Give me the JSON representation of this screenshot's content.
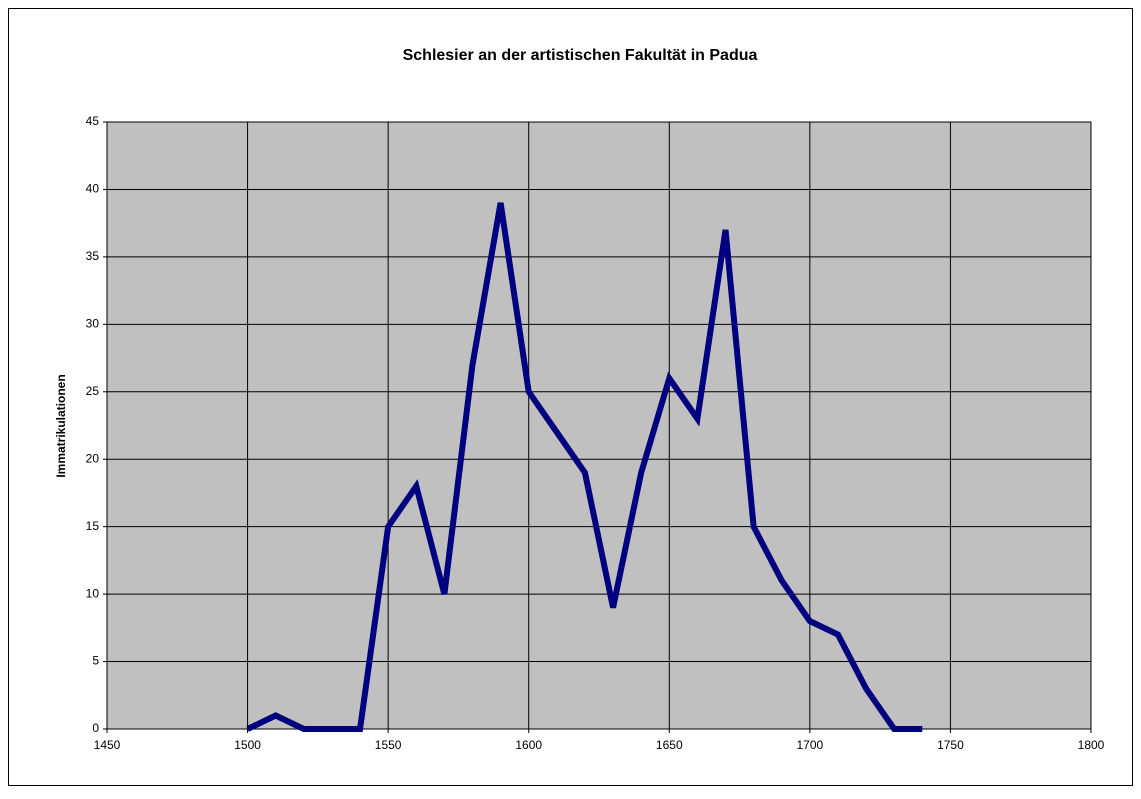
{
  "chart_data": {
    "type": "line",
    "title": "Schlesier an der artistischen Fakultät in Padua",
    "y_label": "Immatrikulationen",
    "x": [
      1500,
      1510,
      1520,
      1530,
      1540,
      1550,
      1560,
      1570,
      1580,
      1590,
      1600,
      1610,
      1620,
      1630,
      1640,
      1650,
      1660,
      1670,
      1680,
      1690,
      1700,
      1710,
      1720,
      1730,
      1740
    ],
    "values": [
      0,
      1,
      0,
      0,
      0,
      15,
      18,
      10,
      27,
      39,
      25,
      22,
      19,
      9,
      19,
      26,
      23,
      37,
      15,
      11,
      8,
      7,
      3,
      0,
      0
    ],
    "color": "#000080",
    "xlim": [
      1450,
      1800
    ],
    "xticks": [
      1450,
      1500,
      1550,
      1600,
      1650,
      1700,
      1750,
      1800
    ],
    "ylim": [
      0,
      45
    ],
    "yticks": [
      0,
      5,
      10,
      15,
      20,
      25,
      30,
      35,
      40,
      45
    ],
    "grid": true,
    "plot_background": "#c0c0c0"
  }
}
